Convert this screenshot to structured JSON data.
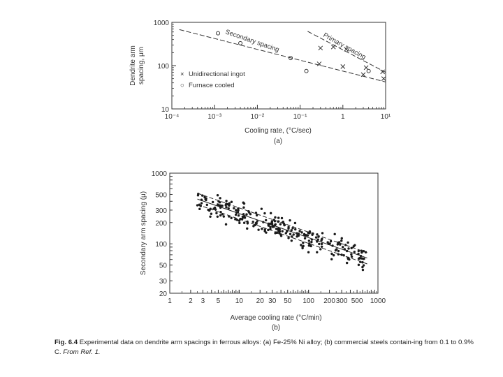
{
  "caption": {
    "label": "Fig. 6.4",
    "text": "Experimental data on dendrite arm spacings in ferrous alloys: (a) Fe-25% Ni alloy; (b) commercial steels contain-ing from 0.1 to 0.9% C.",
    "source": "From Ref. 1."
  },
  "chart_data": [
    {
      "type": "scatter",
      "panel_label": "(a)",
      "xlabel": "Cooling rate, (°C/sec)",
      "ylabel_lines": [
        "Dendrite arm",
        "spacing, μm"
      ],
      "xscale": "log",
      "yscale": "log",
      "xlim": [
        0.0001,
        10
      ],
      "ylim": [
        10,
        1000
      ],
      "x_tick_labels": [
        "10⁻⁴",
        "10⁻³",
        "10⁻²",
        "10⁻¹",
        "1",
        "10¹"
      ],
      "y_tick_labels": [
        "10",
        "100",
        "1000"
      ],
      "legend": [
        {
          "marker": "×",
          "label": "Unidirectional ingot"
        },
        {
          "marker": "○",
          "label": "Furnace cooled"
        }
      ],
      "legend_position": "left-middle",
      "annotations": [
        "Secondary spacing",
        "Primary spacing"
      ],
      "fit_lines": [
        {
          "name": "Secondary spacing",
          "style": "dashed",
          "x": [
            0.00015,
            10
          ],
          "y": [
            680,
            42
          ]
        },
        {
          "name": "Primary spacing",
          "style": "dashed",
          "x": [
            0.15,
            10
          ],
          "y": [
            620,
            70
          ]
        }
      ],
      "series": [
        {
          "name": "Unidirectional ingot",
          "marker": "x",
          "points": [
            [
              0.3,
              255
            ],
            [
              0.6,
              270
            ],
            [
              1.2,
              240
            ],
            [
              3.5,
              90
            ],
            [
              8.5,
              72
            ],
            [
              0.28,
              110
            ],
            [
              1.0,
              95
            ],
            [
              3.0,
              62
            ],
            [
              9.0,
              50
            ]
          ]
        },
        {
          "name": "Furnace cooled",
          "marker": "o",
          "points": [
            [
              0.0012,
              560
            ],
            [
              0.004,
              330
            ],
            [
              0.06,
              150
            ],
            [
              0.14,
              75
            ],
            [
              4.0,
              75
            ]
          ]
        }
      ]
    },
    {
      "type": "scatter",
      "panel_label": "(b)",
      "xlabel": "Average cooling rate (°C/min)",
      "ylabel": "Secondary arm spacing (μ)",
      "xscale": "log",
      "yscale": "log",
      "xlim": [
        1,
        1000
      ],
      "ylim": [
        20,
        1000
      ],
      "x_tick_labels": [
        "1",
        "2",
        "3",
        "5",
        "10",
        "20",
        "30",
        "50",
        "100",
        "200",
        "300",
        "500",
        "1000"
      ],
      "x_tick_values": [
        1,
        2,
        3,
        5,
        10,
        20,
        30,
        50,
        100,
        200,
        300,
        500,
        1000
      ],
      "y_tick_labels": [
        "20",
        "30",
        "50",
        "100",
        "200",
        "300",
        "500",
        "1000"
      ],
      "y_tick_values": [
        20,
        30,
        50,
        100,
        200,
        300,
        500,
        1000
      ],
      "fit_lines": [
        {
          "name": "upper",
          "style": "dashed",
          "x": [
            2.5,
            700
          ],
          "y": [
            520,
            75
          ]
        },
        {
          "name": "center",
          "style": "solid",
          "x": [
            2.5,
            700
          ],
          "y": [
            430,
            63
          ]
        },
        {
          "name": "lower",
          "style": "dashed",
          "x": [
            2.5,
            700
          ],
          "y": [
            360,
            52
          ]
        }
      ],
      "scatter_summary": {
        "x_range": [
          2.5,
          700
        ],
        "trend": "decreasing",
        "approx_points": 260
      }
    }
  ]
}
